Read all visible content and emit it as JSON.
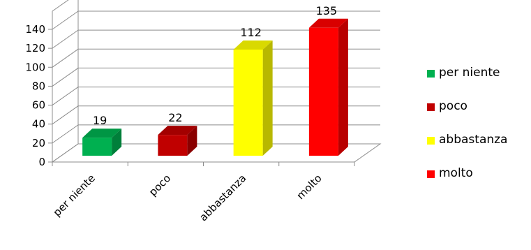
{
  "chart_data": {
    "type": "bar",
    "categories": [
      "per niente",
      "poco",
      "abbastanza",
      "molto"
    ],
    "values": [
      19,
      22,
      112,
      135
    ],
    "data_labels": [
      "19",
      "22",
      "112",
      "135"
    ],
    "colors": [
      "#00b050",
      "#c00000",
      "#ffff00",
      "#ff0000"
    ],
    "ylim": [
      0,
      140
    ],
    "yticks": [
      "0",
      "20",
      "40",
      "60",
      "80",
      "100",
      "120",
      "140"
    ],
    "grid": true,
    "legend_position": "right",
    "style": "3d-column"
  },
  "legend": {
    "items": [
      {
        "label": "per niente",
        "color": "#00b050"
      },
      {
        "label": "poco",
        "color": "#c00000"
      },
      {
        "label": "abbastanza",
        "color": "#ffff00"
      },
      {
        "label": "molto",
        "color": "#ff0000"
      }
    ]
  }
}
